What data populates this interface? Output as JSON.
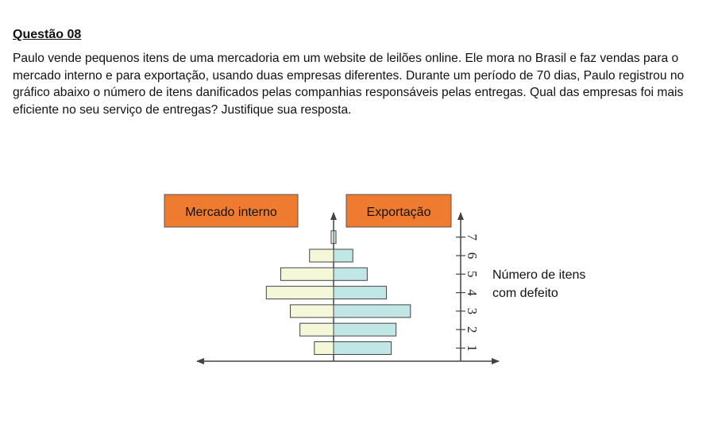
{
  "document": {
    "title": "Questão 08",
    "question": "Paulo vende pequenos itens de uma mercadoria em um website de leilões online. Ele mora no Brasil e faz vendas para o mercado interno e para exportação, usando duas empresas diferentes. Durante um período de 70 dias, Paulo registrou no gráfico abaixo o número de itens danificados pelas companhias responsáveis pelas entregas. Qual das empresas foi mais eficiente no seu serviço de entregas? Justifique sua resposta."
  },
  "chart_data": {
    "type": "bar",
    "orientation": "horizontal back-to-back",
    "left_label": "Mercado interno",
    "right_label": "Exportação",
    "axis_label_line1": "Número de itens",
    "axis_label_line2": "com defeito",
    "categories": [
      "1",
      "2",
      "3",
      "4",
      "5",
      "6",
      "7"
    ],
    "series": [
      {
        "name": "Mercado interno",
        "values": [
          4,
          7,
          9,
          14,
          11,
          5,
          0.5
        ],
        "color": "#f4f7d8"
      },
      {
        "name": "Exportação",
        "values": [
          12,
          13,
          16,
          11,
          7,
          4,
          0.5
        ],
        "color": "#c0e6e6"
      }
    ],
    "label_colors": {
      "box_fill": "#ef7b30",
      "box_text": "#111111"
    }
  }
}
